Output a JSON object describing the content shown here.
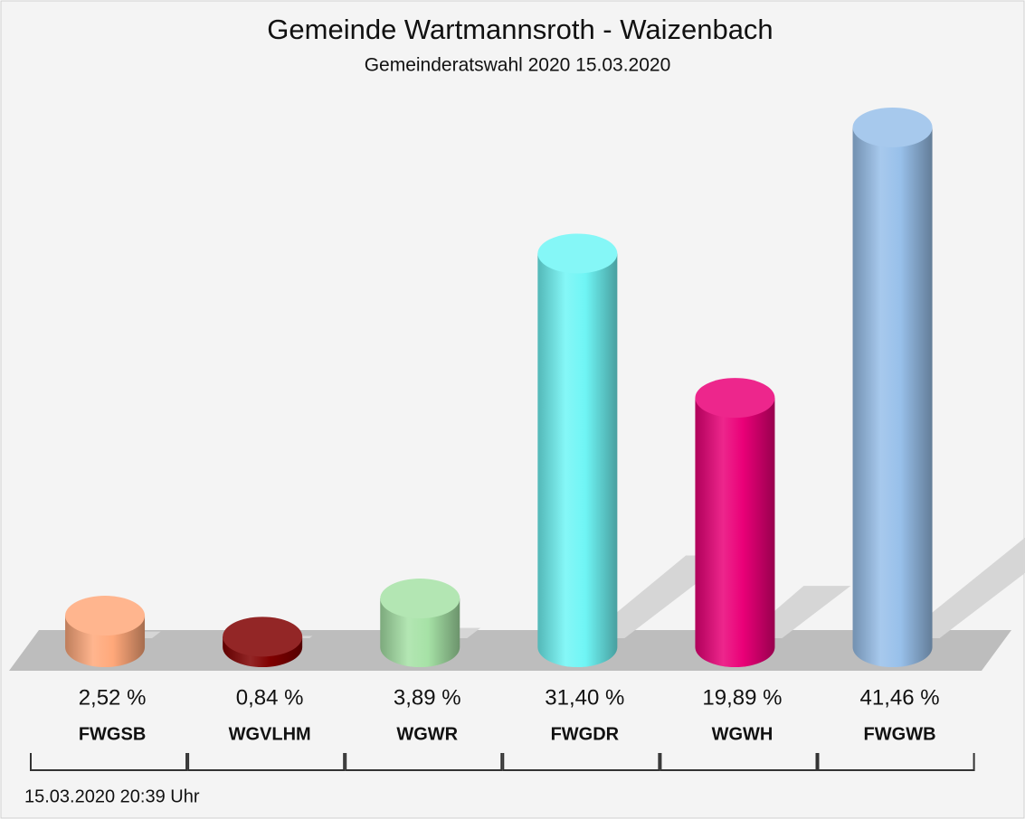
{
  "chart_data": {
    "type": "bar3d",
    "title": "Gemeinde Wartmannsroth - Waizenbach",
    "subtitle": "Gemeinderatswahl 2020 15.03.2020",
    "categories": [
      "FWGSB",
      "WGVLHM",
      "WGWR",
      "FWGDR",
      "WGWH",
      "FWGWB"
    ],
    "values": [
      2.52,
      0.84,
      3.89,
      31.4,
      19.89,
      41.46
    ],
    "value_labels": [
      "2,52 %",
      "0,84 %",
      "3,89 %",
      "31,40 %",
      "19,89 %",
      "41,46 %"
    ],
    "colors": [
      "#ffa87a",
      "#800000",
      "#a6e2a6",
      "#6ff5f5",
      "#ea0078",
      "#98c0ea"
    ],
    "footer": "15.03.2020 20:39 Uhr"
  }
}
